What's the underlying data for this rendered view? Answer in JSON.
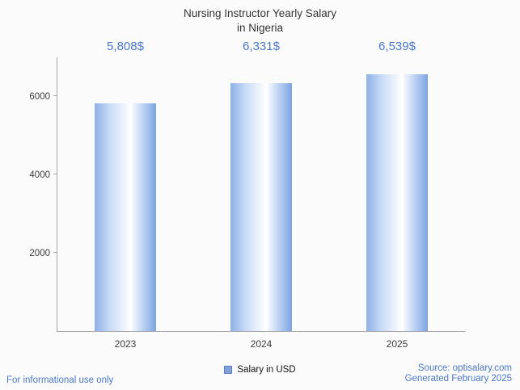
{
  "title": {
    "line1": "Nursing Instructor Yearly Salary",
    "line2": "in Nigeria"
  },
  "chart_data": {
    "type": "bar",
    "title": "Nursing Instructor Yearly Salary in Nigeria",
    "categories": [
      "2023",
      "2024",
      "2025"
    ],
    "values": [
      5808,
      6331,
      6539
    ],
    "value_labels": [
      "5,808$",
      "6,331$",
      "6,539$"
    ],
    "xlabel": "",
    "ylabel": "",
    "ylim": [
      0,
      7000
    ],
    "yticks": [
      2000,
      4000,
      6000
    ],
    "grid": false,
    "legend": {
      "label": "Salary in USD",
      "position": "bottom"
    }
  },
  "footer": {
    "left": "For informational use only",
    "source": "Source: optisalary.com",
    "generated": "Generated February 2025"
  },
  "colors": {
    "accent": "#4a77c9",
    "bar_edge": "#7da4e3",
    "bar_highlight": "#ffffff",
    "axis": "#a6a6a6",
    "tick_text": "#3c3c3c",
    "legend_swatch": "#7e9fd9"
  }
}
